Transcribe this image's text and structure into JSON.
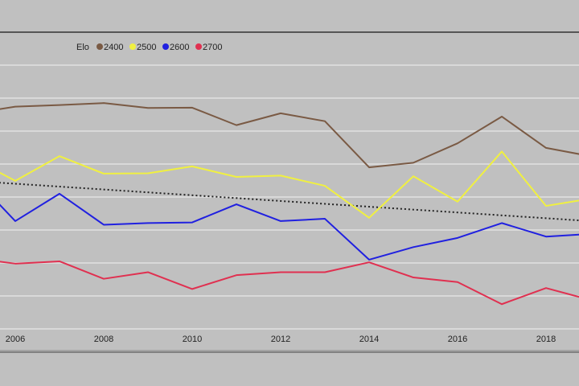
{
  "chart_data": {
    "type": "line",
    "title": "",
    "xlabel": "",
    "ylabel": "",
    "x_ticks": [
      "2006",
      "2008",
      "2010",
      "2012",
      "2014",
      "2016",
      "2018"
    ],
    "x": [
      2005,
      2006,
      2007,
      2008,
      2009,
      2010,
      2011,
      2012,
      2013,
      2014,
      2015,
      2016,
      2017,
      2018,
      2019
    ],
    "xlim": [
      2005.65,
      2018.75
    ],
    "ylim": [
      0,
      8
    ],
    "y_axis_labels_shown": false,
    "grid": true,
    "legend": {
      "placement": "top-left",
      "title": "Elo",
      "entries": [
        "2400",
        "2500",
        "2600",
        "2700"
      ]
    },
    "series": [
      {
        "name": "2400",
        "color": "#7a5a44",
        "values": [
          6.53,
          6.74,
          6.79,
          6.85,
          6.7,
          6.71,
          6.18,
          6.54,
          6.3,
          4.9,
          5.04,
          5.63,
          6.44,
          5.49,
          5.24
        ]
      },
      {
        "name": "2500",
        "color": "#f0f040",
        "values": [
          5.2,
          4.49,
          5.24,
          4.71,
          4.72,
          4.93,
          4.61,
          4.65,
          4.34,
          3.37,
          4.63,
          3.86,
          5.38,
          3.73,
          3.95
        ]
      },
      {
        "name": "2600",
        "color": "#2020e0",
        "values": [
          4.68,
          3.27,
          4.1,
          3.16,
          3.21,
          3.23,
          3.78,
          3.27,
          3.34,
          2.1,
          2.48,
          2.76,
          3.21,
          2.8,
          2.88
        ]
      },
      {
        "name": "2700",
        "color": "#e03050",
        "values": [
          2.15,
          1.98,
          2.05,
          1.52,
          1.72,
          1.21,
          1.63,
          1.72,
          1.72,
          2.02,
          1.56,
          1.42,
          0.75,
          1.24,
          0.88
        ]
      }
    ],
    "trendline": {
      "style": "dotted",
      "color": "#222222",
      "x": [
        2005,
        2019
      ],
      "values": [
        4.49,
        3.27
      ]
    }
  }
}
